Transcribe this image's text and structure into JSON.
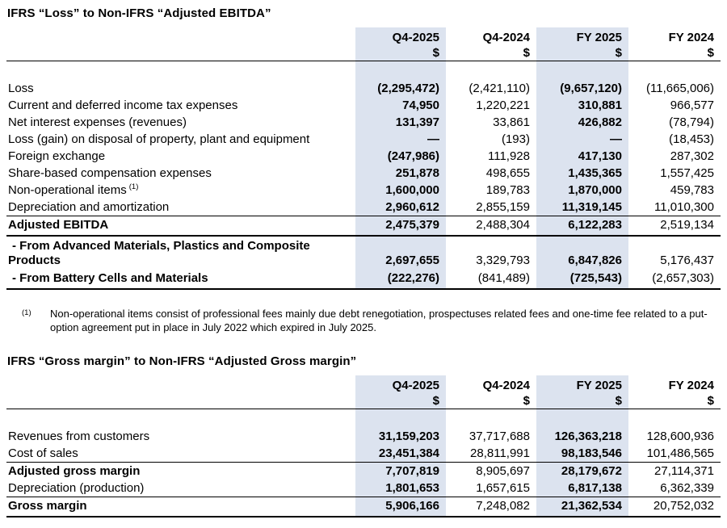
{
  "page": {
    "background": "#ffffff",
    "highlight_color": "#dce3ef"
  },
  "ebitda_table": {
    "title": "IFRS “Loss” to Non-IFRS “Adjusted EBITDA”",
    "columns": [
      "Q4-2025",
      "Q4-2024",
      "FY 2025",
      "FY 2024"
    ],
    "currency": "$",
    "rows": [
      {
        "label": "Loss",
        "values": [
          "(2,295,472)",
          "(2,421,110)",
          "(9,657,120)",
          "(11,665,006)"
        ]
      },
      {
        "label": "Current and deferred income tax expenses",
        "values": [
          "74,950",
          "1,220,221",
          "310,881",
          "966,577"
        ]
      },
      {
        "label": "Net interest expenses (revenues)",
        "values": [
          "131,397",
          "33,861",
          "426,882",
          "(78,794)"
        ]
      },
      {
        "label": "Loss (gain) on disposal of property, plant and equipment",
        "values": [
          "—",
          "(193)",
          "—",
          "(18,453)"
        ]
      },
      {
        "label": "Foreign exchange",
        "values": [
          "(247,986)",
          "111,928",
          "417,130",
          "287,302"
        ]
      },
      {
        "label": "Share-based compensation expenses",
        "values": [
          "251,878",
          "498,655",
          "1,435,365",
          "1,557,425"
        ]
      },
      {
        "label": "Non-operational items",
        "footnote_ref": "(1)",
        "values": [
          "1,600,000",
          "189,783",
          "1,870,000",
          "459,783"
        ]
      },
      {
        "label": "Depreciation and amortization",
        "values": [
          "2,960,612",
          "2,855,159",
          "11,319,145",
          "11,010,300"
        ]
      },
      {
        "label": "Adjusted EBITDA",
        "values": [
          "2,475,379",
          "2,488,304",
          "6,122,283",
          "2,519,134"
        ]
      },
      {
        "label": "- From Advanced Materials, Plastics and Composite Products",
        "values": [
          "2,697,655",
          "3,329,793",
          "6,847,826",
          "5,176,437"
        ]
      },
      {
        "label": "- From Battery Cells and Materials",
        "values": [
          "(222,276)",
          "(841,489)",
          "(725,543)",
          "(2,657,303)"
        ]
      }
    ]
  },
  "footnote": {
    "marker": "(1)",
    "text": "Non-operational items consist of professional fees mainly due debt renegotiation, prospectuses related fees and one-time fee related to a put-option agreement put in place in July 2022 which expired in July 2025."
  },
  "gross_margin_table": {
    "title": "IFRS “Gross margin” to Non-IFRS “Adjusted Gross margin”",
    "columns": [
      "Q4-2025",
      "Q4-2024",
      "FY 2025",
      "FY 2024"
    ],
    "currency": "$",
    "rows": [
      {
        "label": "Revenues from customers",
        "values": [
          "31,159,203",
          "37,717,688",
          "126,363,218",
          "128,600,936"
        ]
      },
      {
        "label": "Cost of sales",
        "values": [
          "23,451,384",
          "28,811,991",
          "98,183,546",
          "101,486,565"
        ]
      },
      {
        "label": "Adjusted gross margin",
        "values": [
          "7,707,819",
          "8,905,697",
          "28,179,672",
          "27,114,371"
        ]
      },
      {
        "label": "Depreciation (production)",
        "values": [
          "1,801,653",
          "1,657,615",
          "6,817,138",
          "6,362,339"
        ]
      },
      {
        "label": "Gross margin",
        "values": [
          "5,906,166",
          "7,248,082",
          "21,362,534",
          "20,752,032"
        ]
      }
    ]
  }
}
